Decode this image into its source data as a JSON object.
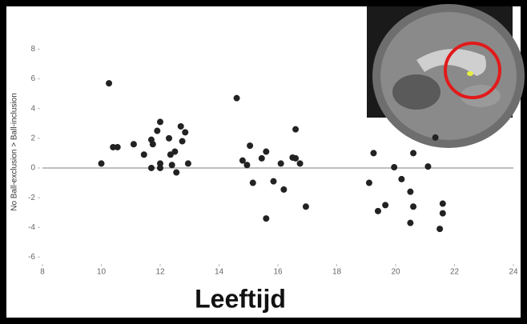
{
  "chart_data": {
    "type": "scatter",
    "x_label": "Leeftijd",
    "y_label": "No Ball-exclusion > Ball-inclusion",
    "color": "#222222",
    "xlim": [
      8,
      24
    ],
    "xticks": [
      8,
      10,
      12,
      14,
      16,
      18,
      20,
      22,
      24
    ],
    "ylim": [
      -6,
      8
    ],
    "yticks": [
      -6,
      -4,
      -2,
      0,
      2,
      4,
      6,
      8
    ],
    "x": [
      10.0,
      10.26,
      10.4,
      10.55,
      11.1,
      11.45,
      11.7,
      11.75,
      11.7,
      12.0,
      11.9,
      12.0,
      12.0,
      12.3,
      12.35,
      12.5,
      12.4,
      12.55,
      12.7,
      12.85,
      12.75,
      12.95,
      14.6,
      14.8,
      14.95,
      15.05,
      15.15,
      15.45,
      15.6,
      15.6,
      15.85,
      16.1,
      16.2,
      16.5,
      16.6,
      16.6,
      16.75,
      16.95,
      19.1,
      19.25,
      19.4,
      19.65,
      19.95,
      20.2,
      20.5,
      20.6,
      20.6,
      20.5,
      21.1,
      21.35,
      21.6,
      21.6,
      21.5
    ],
    "values": [
      0.3,
      5.7,
      1.4,
      1.4,
      1.6,
      0.9,
      1.9,
      1.6,
      0,
      3.1,
      2.5,
      0.3,
      0,
      2.0,
      0.9,
      1.1,
      0.2,
      -0.3,
      2.8,
      2.4,
      1.8,
      0.3,
      4.7,
      0.5,
      0.2,
      1.5,
      -1.0,
      0.65,
      1.1,
      -3.4,
      -0.9,
      0.3,
      -1.45,
      0.7,
      0.65,
      2.6,
      0.3,
      -2.6,
      -1.0,
      1.0,
      -2.9,
      -2.5,
      0.05,
      -0.75,
      -1.6,
      1.0,
      -2.6,
      -3.7,
      0.1,
      2.05,
      -2.4,
      -3.05,
      -4.1
    ]
  }
}
